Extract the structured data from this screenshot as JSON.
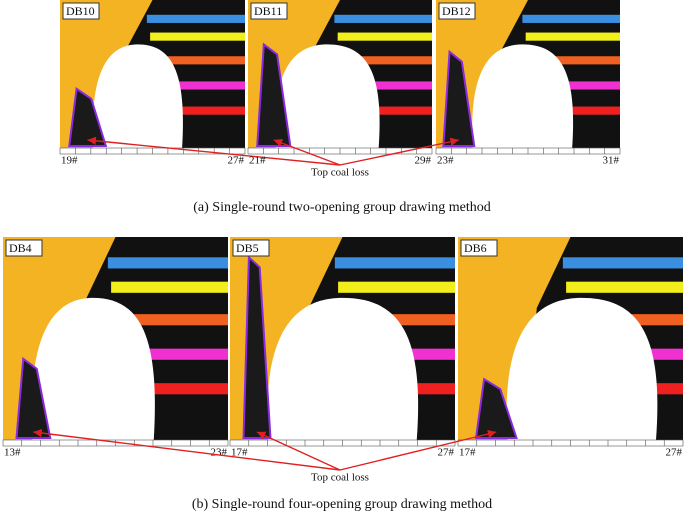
{
  "rows": [
    {
      "panels": [
        {
          "label": "DB10",
          "left": "19#",
          "right": "27#"
        },
        {
          "label": "DB11",
          "left": "21#",
          "right": "29#"
        },
        {
          "label": "DB12",
          "left": "23#",
          "right": "31#"
        }
      ],
      "annotation": "Top coal loss",
      "caption": "(a) Single-round two-opening group drawing method"
    },
    {
      "panels": [
        {
          "label": "DB4",
          "left": "13#",
          "right": "23#"
        },
        {
          "label": "DB5",
          "left": "17#",
          "right": "27#"
        },
        {
          "label": "DB6",
          "left": "17#",
          "right": "27#"
        }
      ],
      "annotation": "Top coal loss",
      "caption": "(b) Single-round four-opening group drawing method"
    }
  ]
}
